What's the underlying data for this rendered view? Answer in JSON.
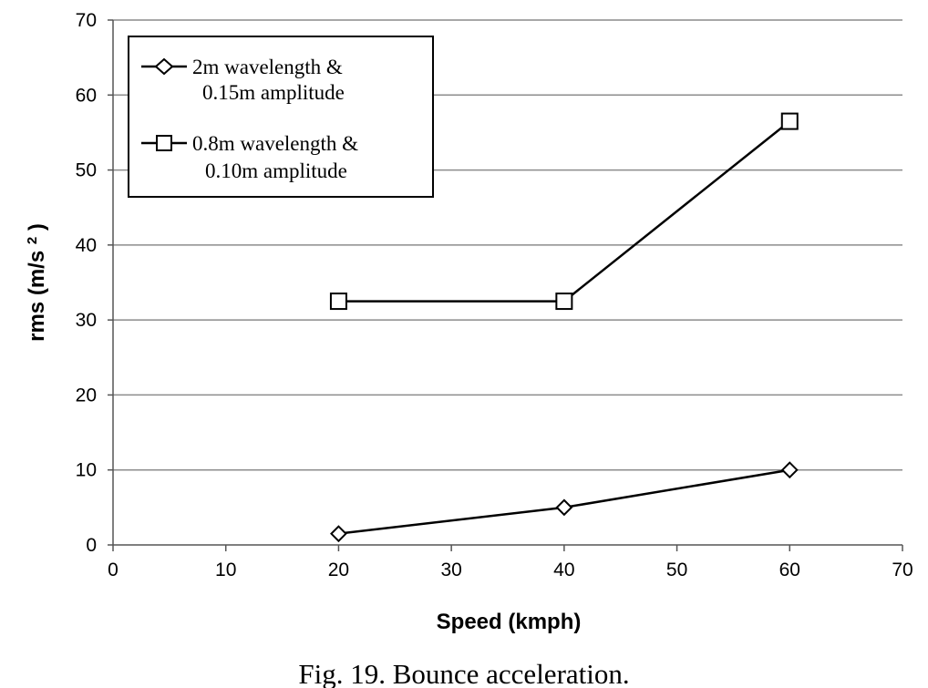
{
  "chart_data": {
    "type": "line",
    "title": "",
    "xlabel": "Speed (kmph)",
    "ylabel_main": "rms",
    "ylabel_unit": "(m/s",
    "ylabel_sup": "2",
    "ylabel_close": ")",
    "xlim": [
      0,
      70
    ],
    "ylim": [
      0,
      70
    ],
    "xticks": [
      0,
      10,
      20,
      30,
      40,
      50,
      60,
      70
    ],
    "yticks": [
      0,
      10,
      20,
      30,
      40,
      50,
      60,
      70
    ],
    "grid": "horizontal",
    "legend_position": "top-left",
    "series": [
      {
        "name_line1": "2m wavelength &",
        "name_line2": "0.15m amplitude",
        "marker": "diamond",
        "x": [
          20,
          40,
          60
        ],
        "y": [
          1.5,
          5,
          10
        ]
      },
      {
        "name_line1": "0.8m wavelength &",
        "name_line2": "0.10m amplitude",
        "marker": "square",
        "x": [
          20,
          40,
          60
        ],
        "y": [
          32.5,
          32.5,
          56.5
        ]
      }
    ]
  },
  "caption": "Fig. 19. Bounce acceleration."
}
